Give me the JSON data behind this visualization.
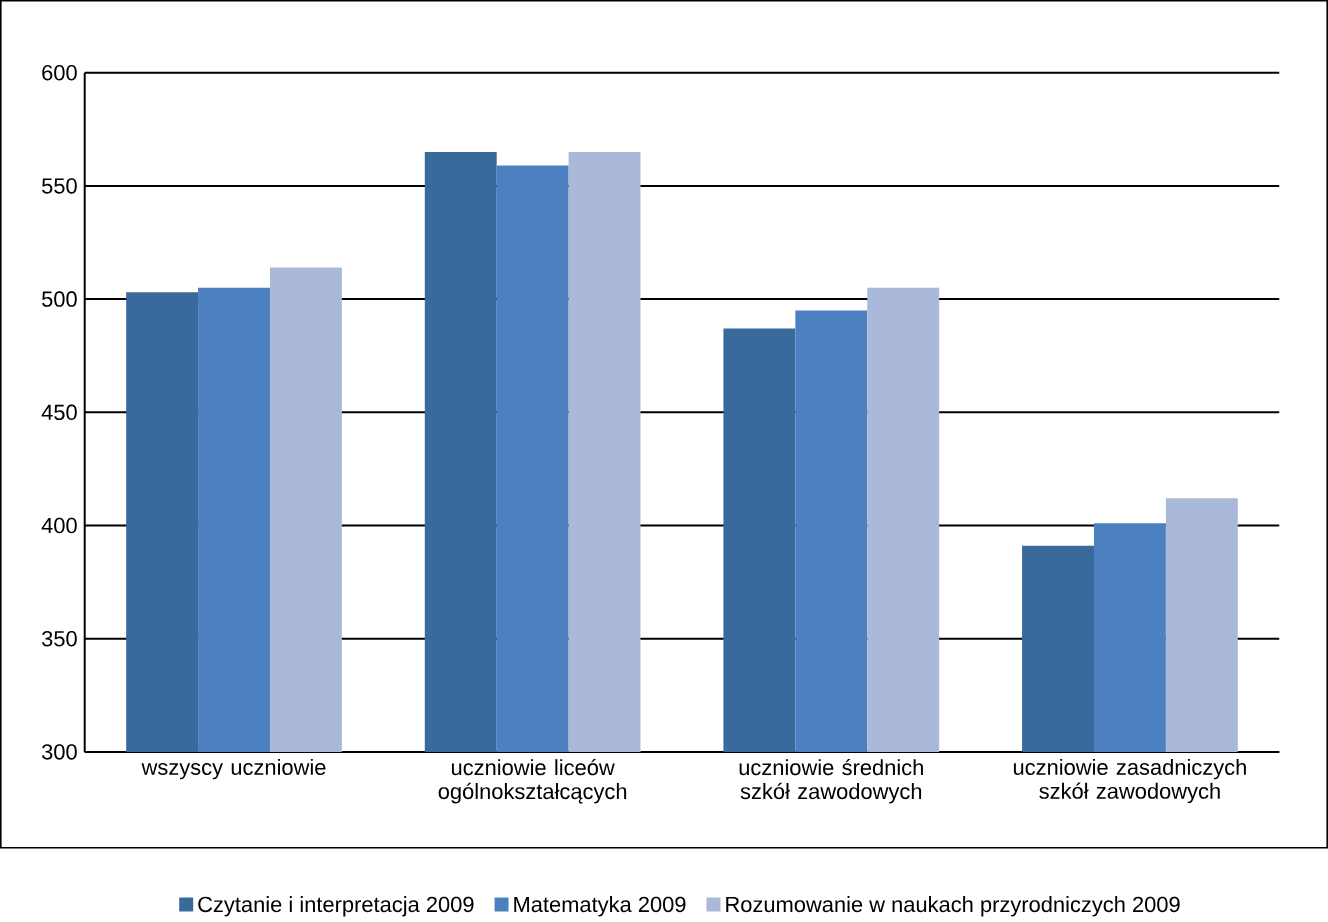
{
  "chart_data": {
    "type": "bar",
    "categories": [
      "wszyscy uczniowie",
      "uczniowie liceów ogólnokształcących",
      "uczniowie średnich szkół zawodowych",
      "uczniowie zasadniczych szkół zawodowych"
    ],
    "series": [
      {
        "name": "Czytanie i interpretacja 2009",
        "color": "#386a9c",
        "values": [
          503,
          565,
          487,
          391
        ]
      },
      {
        "name": "Matematyka 2009",
        "color": "#4c80c0",
        "values": [
          505,
          559,
          495,
          401
        ]
      },
      {
        "name": "Rozumowanie w naukach przyrodniczych 2009",
        "color": "#aab9d9",
        "values": [
          514,
          565,
          505,
          412
        ]
      }
    ],
    "ylim": [
      300,
      600
    ],
    "yticks": [
      300,
      350,
      400,
      450,
      500,
      550,
      600
    ],
    "grid": "y",
    "legend": "bottom"
  }
}
